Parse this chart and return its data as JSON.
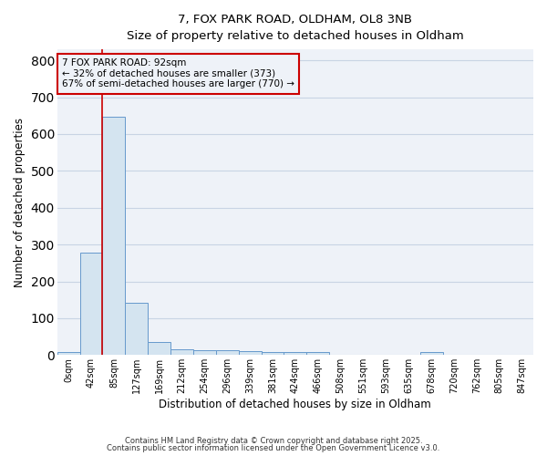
{
  "title1": "7, FOX PARK ROAD, OLDHAM, OL8 3NB",
  "title2": "Size of property relative to detached houses in Oldham",
  "xlabel": "Distribution of detached houses by size in Oldham",
  "ylabel": "Number of detached properties",
  "bins": [
    "0sqm",
    "42sqm",
    "85sqm",
    "127sqm",
    "169sqm",
    "212sqm",
    "254sqm",
    "296sqm",
    "339sqm",
    "381sqm",
    "424sqm",
    "466sqm",
    "508sqm",
    "551sqm",
    "593sqm",
    "635sqm",
    "678sqm",
    "720sqm",
    "762sqm",
    "805sqm",
    "847sqm"
  ],
  "values": [
    8,
    278,
    648,
    142,
    36,
    15,
    12,
    12,
    10,
    8,
    8,
    8,
    0,
    0,
    0,
    0,
    8,
    0,
    0,
    0,
    0
  ],
  "bar_color": "#d4e4f0",
  "bar_edge_color": "#6699cc",
  "property_line_color": "#cc0000",
  "annotation_line1": "7 FOX PARK ROAD: 92sqm",
  "annotation_line2": "← 32% of detached houses are smaller (373)",
  "annotation_line3": "67% of semi-detached houses are larger (770) →",
  "annotation_box_color": "#cc0000",
  "annotation_text_color": "#000000",
  "ylim": [
    0,
    830
  ],
  "yticks": [
    0,
    100,
    200,
    300,
    400,
    500,
    600,
    700,
    800
  ],
  "plot_bg_color": "#eef2f8",
  "fig_bg_color": "#ffffff",
  "grid_color": "#c8d4e4",
  "footer1": "Contains HM Land Registry data © Crown copyright and database right 2025.",
  "footer2": "Contains public sector information licensed under the Open Government Licence v3.0."
}
